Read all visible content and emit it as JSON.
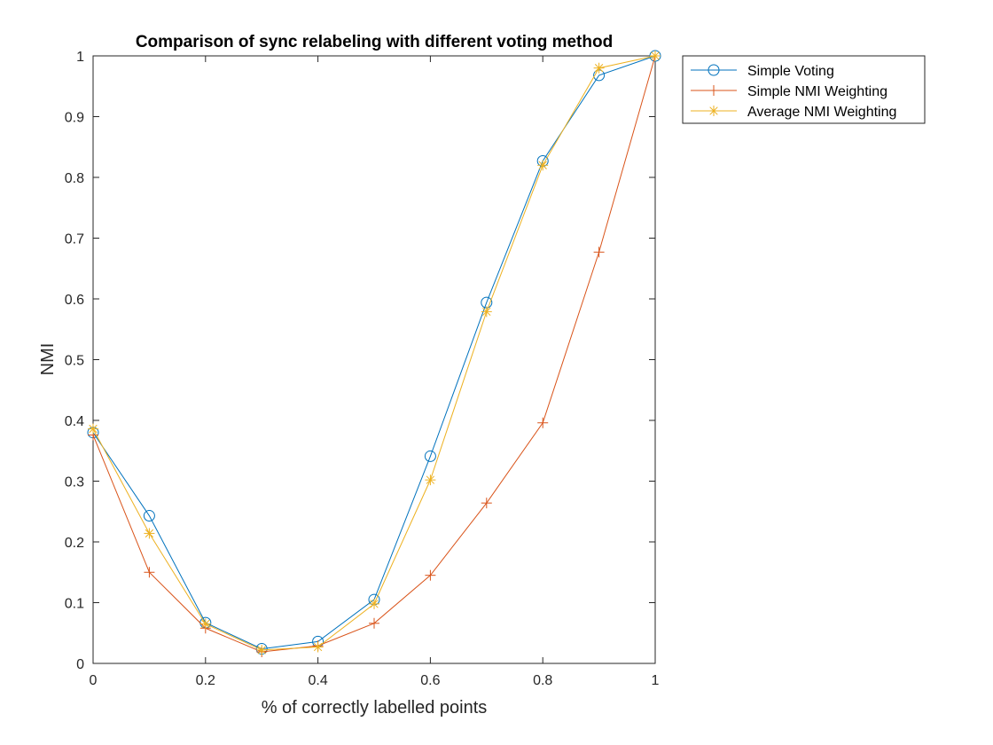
{
  "chart_data": {
    "type": "line",
    "title": "Comparison of sync relabeling with different voting method",
    "xlabel": "% of correctly labelled points",
    "ylabel": "NMI",
    "xlim": [
      0,
      1
    ],
    "ylim": [
      0,
      1
    ],
    "x_ticks": [
      "0",
      "0.2",
      "0.4",
      "0.6",
      "0.8",
      "1"
    ],
    "y_ticks": [
      "0",
      "0.1",
      "0.2",
      "0.3",
      "0.4",
      "0.5",
      "0.6",
      "0.7",
      "0.8",
      "0.9",
      "1"
    ],
    "grid": false,
    "legend_position": "outside-top-right",
    "x": [
      0,
      0.1,
      0.2,
      0.3,
      0.4,
      0.5,
      0.6,
      0.7,
      0.8,
      0.9,
      1.0
    ],
    "series": [
      {
        "name": "Simple Voting",
        "marker": "circle",
        "color": "#0072BD",
        "values": [
          0.38,
          0.243,
          0.067,
          0.024,
          0.036,
          0.105,
          0.341,
          0.594,
          0.827,
          0.968,
          1.0
        ]
      },
      {
        "name": "Simple NMI Weighting",
        "marker": "plus",
        "color": "#D95319",
        "values": [
          0.376,
          0.15,
          0.058,
          0.019,
          0.029,
          0.066,
          0.145,
          0.264,
          0.396,
          0.677,
          1.0
        ]
      },
      {
        "name": "Average NMI Weighting",
        "marker": "star",
        "color": "#EDB120",
        "values": [
          0.386,
          0.214,
          0.065,
          0.022,
          0.027,
          0.098,
          0.302,
          0.579,
          0.82,
          0.98,
          1.0
        ]
      }
    ]
  }
}
